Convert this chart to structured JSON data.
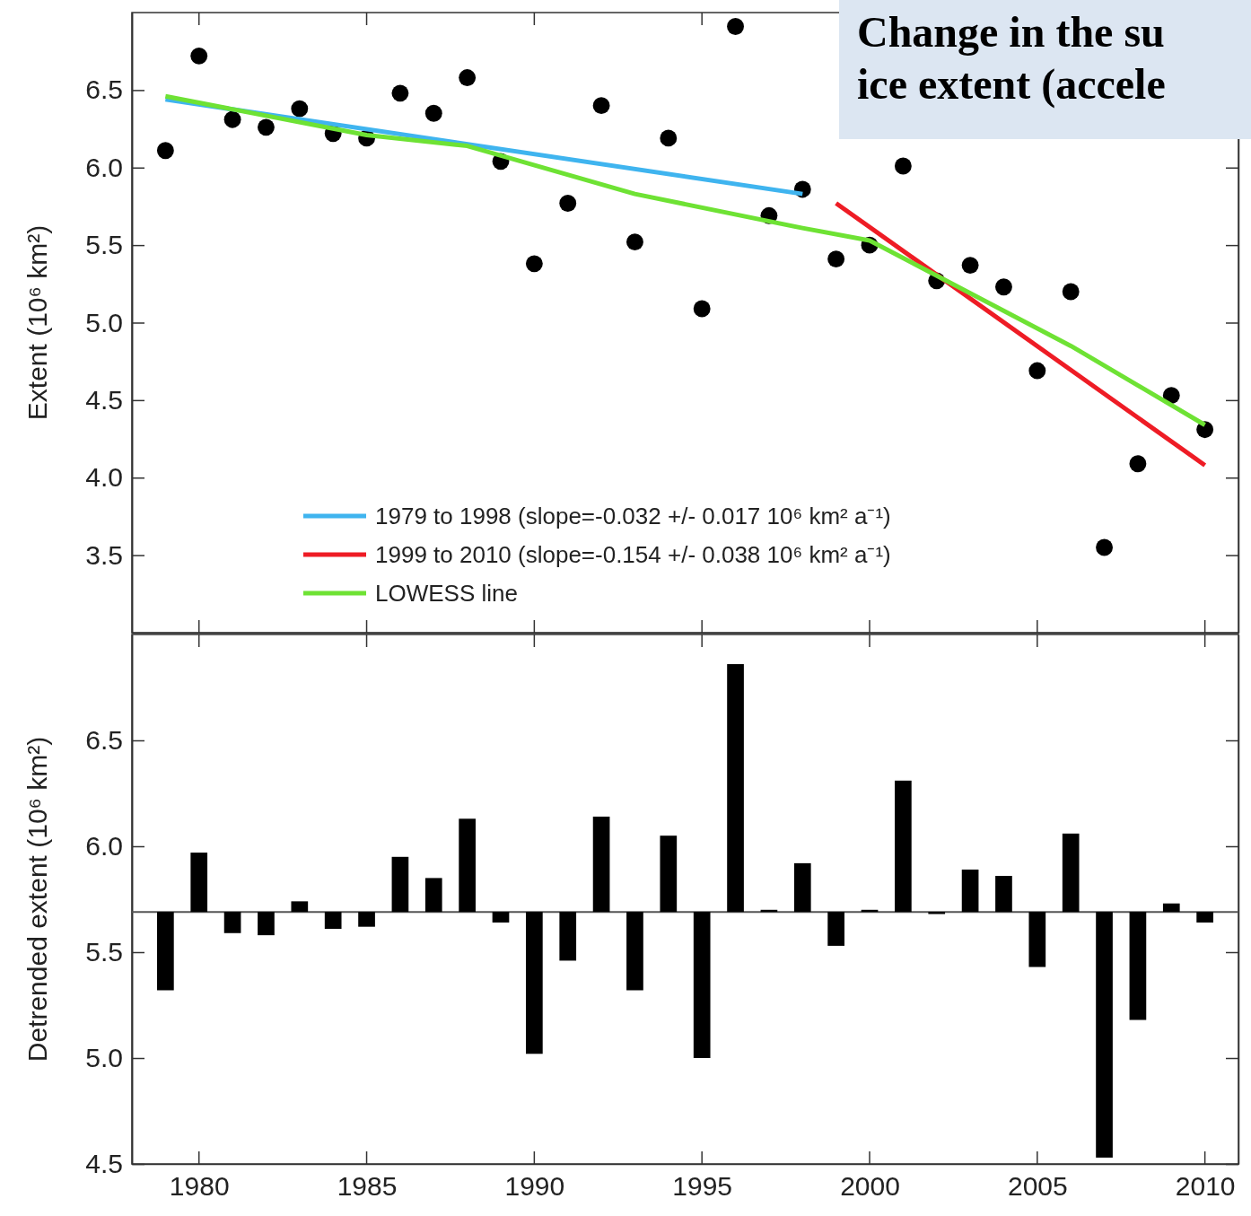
{
  "chart_data": [
    {
      "type": "scatter",
      "title": "Change in the su ice extent (accele",
      "ylabel": "Extent (10⁶ km²)",
      "xlim": [
        1978,
        2011
      ],
      "xticks": [
        1980,
        1985,
        1990,
        1995,
        2000,
        2005,
        2010
      ],
      "ylim": [
        3.0,
        7.0
      ],
      "yticks": [
        3.5,
        {
          "value": 4,
          "label": "4.0"
        },
        4.5,
        {
          "value": 5,
          "label": "5.0"
        },
        5.5,
        {
          "value": 6,
          "label": "6.0"
        },
        6.5
      ],
      "tick_labels": "y",
      "legend": "bottom left",
      "series": [
        {
          "marker": "circle",
          "color": "#000000",
          "x": [
            1979,
            1980,
            1981,
            1982,
            1983,
            1984,
            1985,
            1986,
            1987,
            1988,
            1989,
            1990,
            1991,
            1992,
            1993,
            1994,
            1995,
            1996,
            1997,
            1998,
            1999,
            2000,
            2001,
            2002,
            2003,
            2004,
            2005,
            2006,
            2007,
            2008,
            2009,
            2010
          ],
          "values": [
            6.11,
            6.72,
            6.31,
            6.26,
            6.38,
            6.22,
            6.19,
            6.48,
            6.35,
            6.58,
            6.04,
            5.38,
            5.77,
            6.4,
            5.52,
            6.19,
            5.09,
            6.91,
            5.69,
            5.86,
            5.41,
            5.5,
            6.01,
            5.27,
            5.37,
            5.23,
            4.69,
            5.2,
            3.55,
            4.09,
            4.53,
            4.31
          ]
        },
        {
          "type": "line",
          "name": "1979 to 1998 (slope=-0.032 +/- 0.017 10⁶ km² a⁻¹)",
          "color": "#3fb4ef",
          "x": [
            1979,
            1998
          ],
          "values": [
            6.44,
            5.83
          ]
        },
        {
          "type": "line",
          "name": "1999 to 2010 (slope=-0.154 +/- 0.038 10⁶ km² a⁻¹)",
          "color": "#ee1c25",
          "x": [
            1999,
            2010
          ],
          "values": [
            5.77,
            4.08
          ]
        },
        {
          "type": "line",
          "name": "LOWESS line",
          "color": "#6ee234",
          "x": [
            1979,
            1985,
            1988,
            1993,
            1998,
            2000,
            2003,
            2006,
            2010
          ],
          "values": [
            6.46,
            6.21,
            6.14,
            5.83,
            5.61,
            5.53,
            5.19,
            4.85,
            4.34
          ]
        }
      ]
    },
    {
      "type": "bar",
      "ylabel": "Detrended extent (10⁶ km²)",
      "xlim": [
        1978,
        2011
      ],
      "xticks": [
        1980,
        1985,
        1990,
        1995,
        2000,
        2005,
        2010
      ],
      "ylim": [
        4.5,
        7.0
      ],
      "yticks": [
        4.5,
        {
          "value": 5,
          "label": "5.0"
        },
        5.5,
        {
          "value": 6,
          "label": "6.0"
        },
        6.5
      ],
      "x": [
        1979,
        1980,
        1981,
        1982,
        1983,
        1984,
        1985,
        1986,
        1987,
        1988,
        1989,
        1990,
        1991,
        1992,
        1993,
        1994,
        1995,
        1996,
        1997,
        1998,
        1999,
        2000,
        2001,
        2002,
        2003,
        2004,
        2005,
        2006,
        2007,
        2008,
        2009,
        2010
      ],
      "base": [
        5.69,
        5.69,
        5.69,
        5.69,
        5.69,
        5.69,
        5.69,
        5.69,
        5.69,
        5.69,
        5.69,
        5.69,
        5.69,
        5.69,
        5.69,
        5.69,
        5.69,
        5.69,
        5.69,
        5.69,
        5.69,
        5.69,
        5.69,
        5.69,
        5.69,
        5.69,
        5.69,
        5.69,
        5.69,
        5.69,
        5.69,
        5.69
      ],
      "values": [
        -0.37,
        0.28,
        -0.1,
        -0.11,
        0.05,
        -0.08,
        -0.07,
        0.26,
        0.16,
        0.44,
        -0.05,
        -0.67,
        -0.23,
        0.45,
        -0.37,
        0.36,
        -0.69,
        1.17,
        0.01,
        0.23,
        -0.16,
        0.01,
        0.62,
        -0.01,
        0.2,
        0.17,
        -0.26,
        0.37,
        -1.16,
        -0.51,
        0.04,
        -0.05
      ],
      "color": "#000000",
      "ref_lines": [
        {
          "axis": "y",
          "value": 5.69,
          "color": "#555555"
        }
      ]
    }
  ]
}
